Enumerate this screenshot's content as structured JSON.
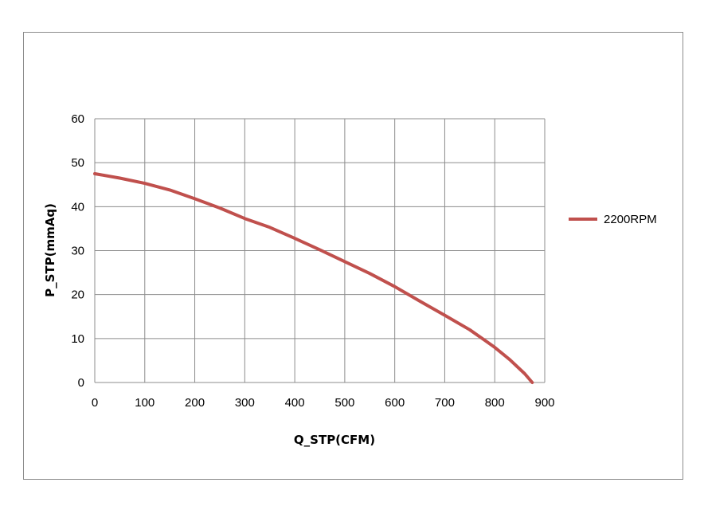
{
  "chart_data": {
    "type": "line",
    "title": "",
    "xlabel": "Q_STP(CFM)",
    "ylabel": "P_STP(mmAq)",
    "xlim": [
      0,
      900
    ],
    "ylim": [
      0,
      60
    ],
    "x_ticks": [
      "0",
      "100",
      "200",
      "300",
      "400",
      "500",
      "600",
      "700",
      "800",
      "900"
    ],
    "y_ticks": [
      "0",
      "10",
      "20",
      "30",
      "40",
      "50",
      "60"
    ],
    "grid": true,
    "legend_position": "right",
    "series": [
      {
        "name": "2200RPM",
        "color": "#c0504d",
        "x": [
          0,
          50,
          100,
          150,
          200,
          250,
          300,
          350,
          400,
          450,
          500,
          550,
          600,
          650,
          700,
          750,
          780,
          800,
          830,
          860,
          875
        ],
        "y": [
          47.5,
          46.5,
          45.3,
          43.8,
          41.8,
          39.7,
          37.3,
          35.3,
          32.8,
          30.2,
          27.5,
          24.8,
          21.8,
          18.5,
          15.3,
          12.0,
          9.6,
          8.0,
          5.2,
          2.0,
          0
        ]
      }
    ]
  }
}
